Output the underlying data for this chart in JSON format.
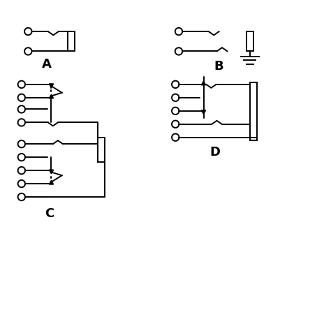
{
  "bg_color": "#ffffff",
  "line_color": "#000000",
  "label_A": "A",
  "label_B": "B",
  "label_C": "C",
  "label_D": "D"
}
